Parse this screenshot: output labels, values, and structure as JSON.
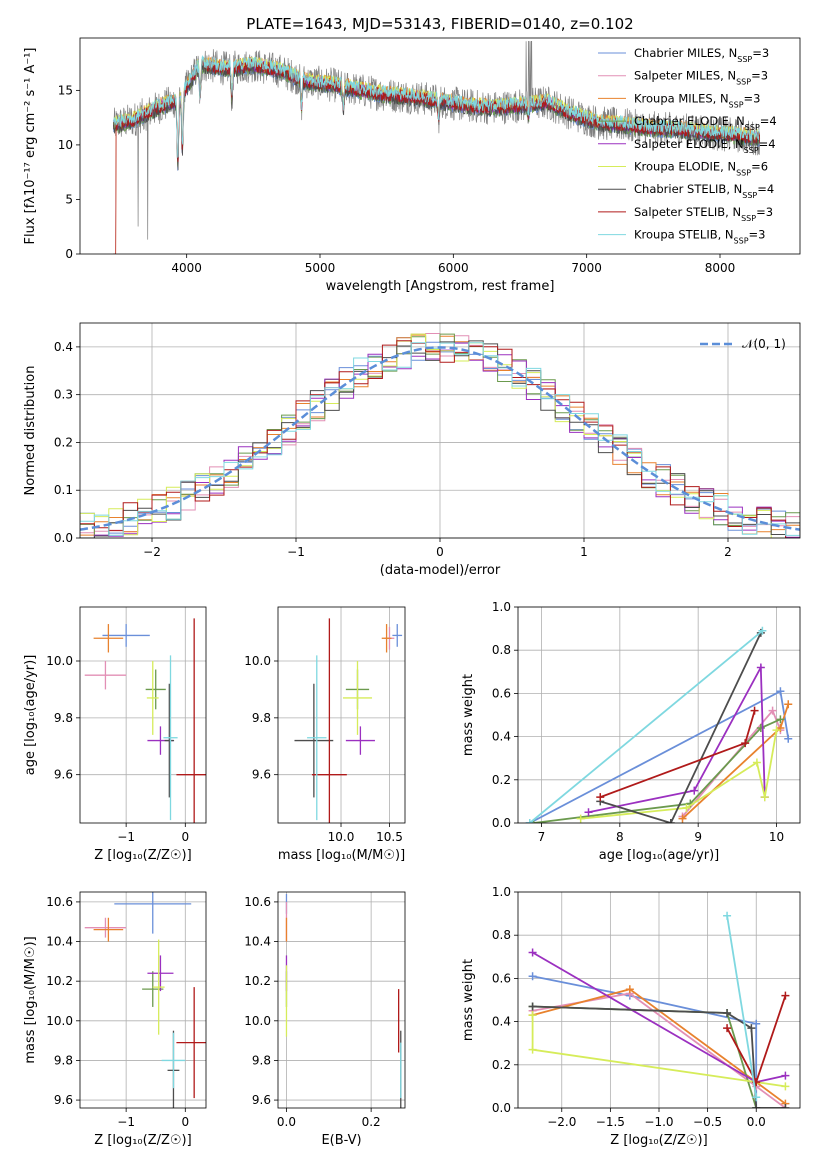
{
  "figure": {
    "title": "PLATE=1643, MJD=53143, FIBERID=0140, z=0.102"
  },
  "colors": {
    "Chabrier MILES": "#6a8fd9",
    "Salpeter MILES": "#e28fb5",
    "Kroupa MILES": "#e8822e",
    "Chabrier ELODIE": "#6b9a4e",
    "Salpeter ELODIE": "#9b30c0",
    "Kroupa ELODIE": "#d6ec5a",
    "Chabrier STELIB": "#4d4d4d",
    "Salpeter STELIB": "#b01a1a",
    "Kroupa STELIB": "#7fd8e0",
    "data": "#808080",
    "normal": "#5b8ed8"
  },
  "chart_data": [
    {
      "id": "spectrum",
      "type": "line",
      "xlabel": "wavelength [Angstrom, rest frame]",
      "ylabel": "Flux [fλ10⁻¹⁷ erg cm⁻² s⁻¹ A⁻¹]",
      "xlim": [
        3200,
        8600
      ],
      "ylim": [
        0,
        19.8
      ],
      "xticks": [
        4000,
        5000,
        6000,
        7000,
        8000
      ],
      "yticks": [
        0,
        5,
        10,
        15
      ],
      "legend_position": "top-right",
      "legend": [
        "Chabrier MILES, N_SSP=3",
        "Salpeter MILES, N_SSP=3",
        "Kroupa MILES, N_SSP=3",
        "Chabrier ELODIE, N_SSP=4",
        "Salpeter ELODIE, N_SSP=4",
        "Kroupa ELODIE, N_SSP=6",
        "Chabrier STELIB, N_SSP=4",
        "Salpeter STELIB, N_SSP=3",
        "Kroupa STELIB, N_SSP=3"
      ],
      "continuum": {
        "x": [
          3450,
          3600,
          3800,
          3950,
          4100,
          4300,
          4500,
          4700,
          4900,
          5100,
          5300,
          5500,
          5700,
          5900,
          6100,
          6300,
          6500,
          6700,
          6900,
          7100,
          7300,
          7500,
          7700,
          7900,
          8100,
          8300
        ],
        "y": [
          11.8,
          12.3,
          13.5,
          14.2,
          17.4,
          17.0,
          17.3,
          16.8,
          15.8,
          15.5,
          15.0,
          14.6,
          14.4,
          14.0,
          13.6,
          13.4,
          13.6,
          13.9,
          12.8,
          12.0,
          11.8,
          11.5,
          11.4,
          11.1,
          10.9,
          10.6
        ]
      }
    },
    {
      "id": "residuals",
      "type": "line",
      "xlabel": "(data-model)/error",
      "ylabel": "Normed distribution",
      "xlim": [
        -2.5,
        2.5
      ],
      "ylim": [
        0,
        0.45
      ],
      "xticks": [
        -2,
        -1,
        0,
        1,
        2
      ],
      "yticks": [
        0.0,
        0.1,
        0.2,
        0.3,
        0.4
      ],
      "legend_position": "top-right",
      "legend": [
        "𝒩(0, 1)"
      ]
    },
    {
      "id": "age-vs-z",
      "type": "scatter",
      "xlabel": "Z [log₁₀(Z/Z☉)]",
      "ylabel": "age  [log₁₀(age/yr)]",
      "xlim": [
        -1.78,
        0.35
      ],
      "ylim": [
        9.43,
        10.19
      ],
      "xticks": [
        -1,
        0
      ],
      "yticks": [
        9.6,
        9.8,
        10.0
      ],
      "points": [
        {
          "model": "Chabrier MILES",
          "x": -1.0,
          "y": 10.09,
          "xerr": 0.4,
          "yerr": 0.04
        },
        {
          "model": "Salpeter MILES",
          "x": -1.35,
          "y": 9.95,
          "xerr": 0.35,
          "yerr": 0.05
        },
        {
          "model": "Kroupa MILES",
          "x": -1.3,
          "y": 10.08,
          "xerr": 0.25,
          "yerr": 0.05
        },
        {
          "model": "Chabrier ELODIE",
          "x": -0.5,
          "y": 9.9,
          "xerr": 0.17,
          "yerr": 0.07
        },
        {
          "model": "Salpeter ELODIE",
          "x": -0.42,
          "y": 9.72,
          "xerr": 0.22,
          "yerr": 0.05
        },
        {
          "model": "Kroupa ELODIE",
          "x": -0.55,
          "y": 9.87,
          "xerr": 0.1,
          "yerr": 0.13
        },
        {
          "model": "Chabrier STELIB",
          "x": -0.27,
          "y": 9.72,
          "xerr": 0.08,
          "yerr": 0.2
        },
        {
          "model": "Salpeter STELIB",
          "x": 0.15,
          "y": 9.6,
          "xerr": 0.3,
          "yerr": 0.55
        },
        {
          "model": "Kroupa STELIB",
          "x": -0.25,
          "y": 9.73,
          "xerr": 0.12,
          "yerr": 0.29
        }
      ]
    },
    {
      "id": "age-vs-mass",
      "type": "scatter",
      "xlabel": "mass [log₁₀(M/M☉)]",
      "ylabel": "",
      "xlim": [
        9.35,
        10.66
      ],
      "ylim": [
        9.43,
        10.19
      ],
      "xticks": [
        10.0,
        10.5
      ],
      "yticks": [
        9.6,
        9.8,
        10.0
      ],
      "points": [
        {
          "model": "Chabrier MILES",
          "x": 10.58,
          "y": 10.09,
          "xerr": 0.05,
          "yerr": 0.04
        },
        {
          "model": "Salpeter MILES",
          "x": 10.5,
          "y": 10.08,
          "xerr": 0.05,
          "yerr": 0.04
        },
        {
          "model": "Kroupa MILES",
          "x": 10.47,
          "y": 10.08,
          "xerr": 0.05,
          "yerr": 0.05
        },
        {
          "model": "Chabrier ELODIE",
          "x": 10.17,
          "y": 9.9,
          "xerr": 0.12,
          "yerr": 0.07
        },
        {
          "model": "Salpeter ELODIE",
          "x": 10.2,
          "y": 9.72,
          "xerr": 0.15,
          "yerr": 0.05
        },
        {
          "model": "Kroupa ELODIE",
          "x": 10.17,
          "y": 9.87,
          "xerr": 0.15,
          "yerr": 0.13
        },
        {
          "model": "Chabrier STELIB",
          "x": 9.72,
          "y": 9.72,
          "xerr": 0.2,
          "yerr": 0.2
        },
        {
          "model": "Salpeter STELIB",
          "x": 9.88,
          "y": 9.6,
          "xerr": 0.18,
          "yerr": 0.55
        },
        {
          "model": "Kroupa STELIB",
          "x": 9.75,
          "y": 9.73,
          "xerr": 0.1,
          "yerr": 0.29
        }
      ]
    },
    {
      "id": "weight-vs-age",
      "type": "line",
      "xlabel": "age  [log₁₀(age/yr)]",
      "ylabel": "mass weight",
      "xlim": [
        6.7,
        10.3
      ],
      "ylim": [
        0,
        1
      ],
      "xticks": [
        7,
        8,
        9,
        10
      ],
      "yticks": [
        0.0,
        0.2,
        0.4,
        0.6,
        0.8,
        1.0
      ],
      "series": [
        {
          "model": "Chabrier MILES",
          "x": [
            6.85,
            10.05,
            10.15
          ],
          "y": [
            0.0,
            0.61,
            0.39
          ]
        },
        {
          "model": "Salpeter MILES",
          "x": [
            8.8,
            9.95,
            10.05
          ],
          "y": [
            0.03,
            0.52,
            0.43
          ]
        },
        {
          "model": "Kroupa MILES",
          "x": [
            8.8,
            10.05,
            10.15
          ],
          "y": [
            0.02,
            0.44,
            0.55
          ]
        },
        {
          "model": "Chabrier ELODIE",
          "x": [
            6.9,
            8.9,
            9.8,
            10.05
          ],
          "y": [
            0.0,
            0.09,
            0.44,
            0.48
          ]
        },
        {
          "model": "Salpeter ELODIE",
          "x": [
            7.6,
            8.95,
            9.8,
            9.85
          ],
          "y": [
            0.05,
            0.15,
            0.72,
            0.12
          ]
        },
        {
          "model": "Kroupa ELODIE",
          "x": [
            7.5,
            8.85,
            9.75,
            9.85,
            10.0
          ],
          "y": [
            0.02,
            0.07,
            0.28,
            0.12,
            0.43
          ]
        },
        {
          "model": "Chabrier STELIB",
          "x": [
            7.75,
            8.65,
            9.8
          ],
          "y": [
            0.1,
            0.0,
            0.88
          ]
        },
        {
          "model": "Salpeter STELIB",
          "x": [
            7.75,
            9.6,
            9.72
          ],
          "y": [
            0.12,
            0.37,
            0.52
          ]
        },
        {
          "model": "Kroupa STELIB",
          "x": [
            6.85,
            9.82
          ],
          "y": [
            0.0,
            0.89
          ]
        }
      ]
    },
    {
      "id": "mass-vs-z",
      "type": "scatter",
      "xlabel": "Z [log₁₀(Z/Z☉)]",
      "ylabel": "mass [log₁₀(M/M☉)]",
      "xlim": [
        -1.78,
        0.35
      ],
      "ylim": [
        9.56,
        10.65
      ],
      "xticks": [
        -1,
        0
      ],
      "yticks": [
        9.6,
        9.8,
        10.0,
        10.2,
        10.4,
        10.6
      ],
      "points": [
        {
          "model": "Chabrier MILES",
          "x": -0.55,
          "y": 10.59,
          "xerr": 0.65,
          "yerr": 0.15
        },
        {
          "model": "Salpeter MILES",
          "x": -1.35,
          "y": 10.47,
          "xerr": 0.35,
          "yerr": 0.05
        },
        {
          "model": "Kroupa MILES",
          "x": -1.3,
          "y": 10.46,
          "xerr": 0.25,
          "yerr": 0.06
        },
        {
          "model": "Chabrier ELODIE",
          "x": -0.55,
          "y": 10.16,
          "xerr": 0.18,
          "yerr": 0.09
        },
        {
          "model": "Salpeter ELODIE",
          "x": -0.42,
          "y": 10.24,
          "xerr": 0.22,
          "yerr": 0.09
        },
        {
          "model": "Kroupa ELODIE",
          "x": -0.45,
          "y": 10.17,
          "xerr": 0.1,
          "yerr": 0.24
        },
        {
          "model": "Chabrier STELIB",
          "x": -0.2,
          "y": 9.75,
          "xerr": 0.1,
          "yerr": 0.2
        },
        {
          "model": "Salpeter STELIB",
          "x": 0.15,
          "y": 9.89,
          "xerr": 0.3,
          "yerr": 0.28
        },
        {
          "model": "Kroupa STELIB",
          "x": -0.2,
          "y": 9.8,
          "xerr": 0.2,
          "yerr": 0.14
        }
      ]
    },
    {
      "id": "mass-vs-ebv",
      "type": "scatter",
      "xlabel": "E(B-V)",
      "ylabel": "",
      "xlim": [
        -0.02,
        0.28
      ],
      "ylim": [
        9.56,
        10.65
      ],
      "xticks": [
        0.0,
        0.2
      ],
      "yticks": [
        9.6,
        9.8,
        10.0,
        10.2,
        10.4,
        10.6
      ],
      "points": [
        {
          "model": "Chabrier MILES",
          "x": 0.0,
          "y": 10.59,
          "xerr": 0.0,
          "yerr": 0.05
        },
        {
          "model": "Salpeter MILES",
          "x": 0.0,
          "y": 10.5,
          "xerr": 0.0,
          "yerr": 0.1
        },
        {
          "model": "Kroupa MILES",
          "x": 0.0,
          "y": 10.46,
          "xerr": 0.0,
          "yerr": 0.06
        },
        {
          "model": "Chabrier ELODIE",
          "x": 0.0,
          "y": 10.16,
          "xerr": 0.0,
          "yerr": 0.09
        },
        {
          "model": "Salpeter ELODIE",
          "x": 0.0,
          "y": 10.24,
          "xerr": 0.0,
          "yerr": 0.09
        },
        {
          "model": "Kroupa ELODIE",
          "x": 0.0,
          "y": 10.1,
          "xerr": 0.0,
          "yerr": 0.18
        },
        {
          "model": "Chabrier STELIB",
          "x": 0.27,
          "y": 9.75,
          "xerr": 0.0,
          "yerr": 0.2
        },
        {
          "model": "Salpeter STELIB",
          "x": 0.265,
          "y": 10.0,
          "xerr": 0.0,
          "yerr": 0.16
        },
        {
          "model": "Kroupa STELIB",
          "x": 0.27,
          "y": 9.75,
          "xerr": 0.0,
          "yerr": 0.14
        }
      ]
    },
    {
      "id": "weight-vs-z",
      "type": "line",
      "xlabel": "Z [log₁₀(Z/Z☉)]",
      "ylabel": "mass weight",
      "xlim": [
        -2.45,
        0.45
      ],
      "ylim": [
        0,
        1
      ],
      "xticks": [
        -2.0,
        -1.5,
        -1.0,
        -0.5,
        0.0
      ],
      "yticks": [
        0.0,
        0.2,
        0.4,
        0.6,
        0.8,
        1.0
      ],
      "series": [
        {
          "model": "Chabrier MILES",
          "x": [
            -2.3,
            -1.3,
            0.0,
            0.0
          ],
          "y": [
            0.61,
            0.52,
            0.39,
            0.0
          ]
        },
        {
          "model": "Salpeter MILES",
          "x": [
            -2.3,
            -1.3,
            0.0,
            0.3
          ],
          "y": [
            0.45,
            0.53,
            0.1,
            0.0
          ]
        },
        {
          "model": "Kroupa MILES",
          "x": [
            -2.3,
            -1.3,
            0.0,
            0.3
          ],
          "y": [
            0.43,
            0.55,
            0.12,
            0.02
          ]
        },
        {
          "model": "Chabrier ELODIE",
          "x": [
            -2.3,
            -0.3,
            0.0
          ],
          "y": [
            0.47,
            0.44,
            0.0
          ]
        },
        {
          "model": "Salpeter ELODIE",
          "x": [
            -2.3,
            0.0,
            0.3
          ],
          "y": [
            0.72,
            0.12,
            0.15
          ]
        },
        {
          "model": "Kroupa ELODIE",
          "x": [
            -2.3,
            -2.3,
            0.0,
            0.3
          ],
          "y": [
            0.43,
            0.27,
            0.12,
            0.1
          ]
        },
        {
          "model": "Chabrier STELIB",
          "x": [
            -2.3,
            -0.3,
            -0.05,
            0.0,
            0.3
          ],
          "y": [
            0.47,
            0.44,
            0.37,
            0.0,
            0.0
          ]
        },
        {
          "model": "Salpeter STELIB",
          "x": [
            -0.3,
            0.0,
            0.3
          ],
          "y": [
            0.37,
            0.12,
            0.52
          ]
        },
        {
          "model": "Kroupa STELIB",
          "x": [
            -0.3,
            0.0
          ],
          "y": [
            0.89,
            0.05
          ]
        }
      ]
    }
  ]
}
